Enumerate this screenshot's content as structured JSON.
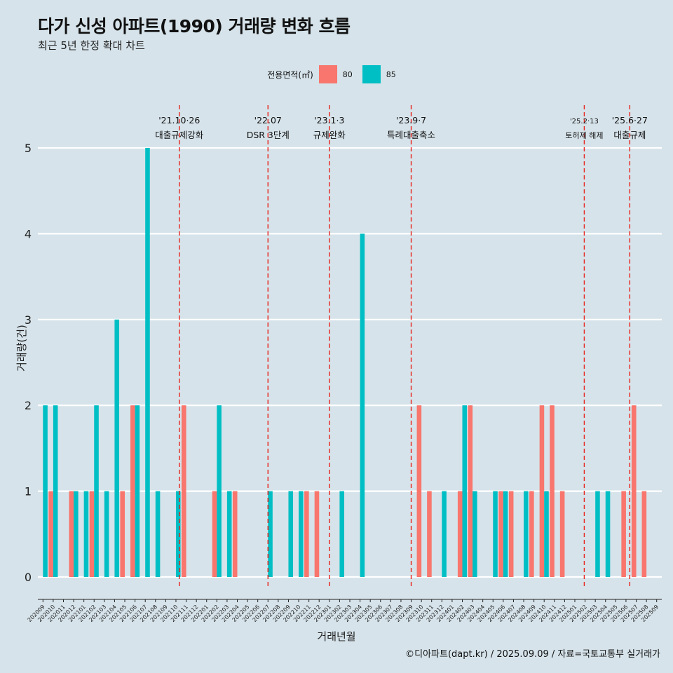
{
  "header": {
    "title": "다가 신성 아파트(1990) 거래량 변화 흐름",
    "subtitle": "최근 5년 한정 확대 차트"
  },
  "legend": {
    "title": "전용면적(㎡)",
    "items": [
      {
        "label": "80",
        "color": "#F8766D"
      },
      {
        "label": "85",
        "color": "#00BFC4"
      }
    ]
  },
  "caption": "©디아파트(dapt.kr) / 2025.09.09 / 자료=국토교통부 실거래가",
  "chart_data": {
    "type": "bar",
    "xlabel": "거래년월",
    "ylabel": "거래량(건)",
    "ylim": [
      0,
      5
    ],
    "yticks": [
      0,
      1,
      2,
      3,
      4,
      5
    ],
    "grid": true,
    "legend_position": "top",
    "categories": [
      "202009",
      "202010",
      "202011",
      "202012",
      "202101",
      "202102",
      "202103",
      "202104",
      "202105",
      "202106",
      "202107",
      "202108",
      "202109",
      "202110",
      "202111",
      "202112",
      "202201",
      "202202",
      "202203",
      "202204",
      "202205",
      "202206",
      "202207",
      "202208",
      "202209",
      "202210",
      "202211",
      "202212",
      "202301",
      "202302",
      "202303",
      "202304",
      "202305",
      "202306",
      "202307",
      "202308",
      "202309",
      "202310",
      "202311",
      "202312",
      "202401",
      "202402",
      "202403",
      "202404",
      "202405",
      "202406",
      "202407",
      "202408",
      "202409",
      "202410",
      "202411",
      "202412",
      "202501",
      "202502",
      "202503",
      "202504",
      "202505",
      "202506",
      "202507",
      "202508",
      "202509"
    ],
    "series": [
      {
        "name": "80",
        "color": "#F8766D",
        "values": [
          0,
          1,
          0,
          1,
          0,
          1,
          0,
          0,
          1,
          2,
          0,
          0,
          0,
          0,
          2,
          0,
          0,
          1,
          0,
          1,
          0,
          0,
          0,
          0,
          0,
          0,
          1,
          1,
          0,
          0,
          0,
          0,
          0,
          0,
          0,
          0,
          0,
          2,
          1,
          0,
          0,
          1,
          2,
          0,
          0,
          1,
          1,
          0,
          1,
          2,
          2,
          1,
          0,
          0,
          0,
          0,
          0,
          1,
          2,
          1,
          0
        ]
      },
      {
        "name": "85",
        "color": "#00BFC4",
        "values": [
          2,
          2,
          0,
          1,
          1,
          2,
          1,
          3,
          0,
          2,
          5,
          1,
          0,
          1,
          0,
          0,
          0,
          2,
          1,
          0,
          0,
          0,
          1,
          0,
          1,
          1,
          0,
          0,
          0,
          1,
          0,
          4,
          0,
          0,
          0,
          0,
          0,
          0,
          0,
          1,
          0,
          2,
          1,
          0,
          1,
          1,
          0,
          1,
          0,
          1,
          0,
          0,
          0,
          0,
          1,
          1,
          0,
          0,
          0,
          0,
          0
        ]
      }
    ],
    "annotations": [
      {
        "date": "'21.10·26",
        "label": "대출규제강화",
        "category": "202110",
        "offset": 0.83
      },
      {
        "date": "'22.07",
        "label": "DSR 3단계",
        "category": "202207",
        "offset": 0.5
      },
      {
        "date": "'23.1·3",
        "label": "규제완화",
        "category": "202301",
        "offset": 0.5
      },
      {
        "date": "'23.9·7",
        "label": "특례대출축소",
        "category": "202309",
        "offset": 0.5
      },
      {
        "date": "'25.2·13",
        "label": "토허제 해제",
        "category": "202502",
        "offset": 0.42
      },
      {
        "date": "'25.6·27",
        "label": "대출규제",
        "category": "202506",
        "offset": 0.87
      }
    ]
  }
}
